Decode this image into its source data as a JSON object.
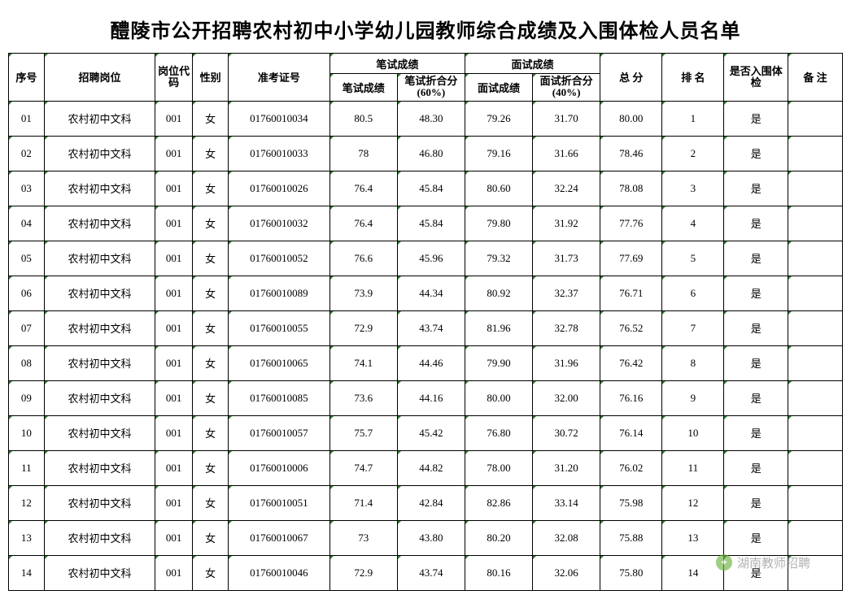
{
  "title": "醴陵市公开招聘农村初中小学幼儿园教师综合成绩及入围体检人员名单",
  "headers": {
    "seq": "序号",
    "position": "招聘岗位",
    "posCode": "岗位代码",
    "gender": "性别",
    "examNo": "准考证号",
    "writtenGroup": "笔试成绩",
    "writtenScore": "笔试成绩",
    "writtenConv": "笔试折合分(60%)",
    "interviewGroup": "面试成绩",
    "interviewScore": "面试成绩",
    "interviewConv": "面试折合分(40%)",
    "total": "总 分",
    "rank": "排 名",
    "pass": "是否入围体检",
    "note": "备 注"
  },
  "rows": [
    {
      "seq": "01",
      "pos": "农村初中文科",
      "code": "001",
      "gender": "女",
      "exam": "01760010034",
      "ws": "80.5",
      "wc": "48.30",
      "is": "79.26",
      "ic": "31.70",
      "total": "80.00",
      "rank": "1",
      "pass": "是",
      "note": ""
    },
    {
      "seq": "02",
      "pos": "农村初中文科",
      "code": "001",
      "gender": "女",
      "exam": "01760010033",
      "ws": "78",
      "wc": "46.80",
      "is": "79.16",
      "ic": "31.66",
      "total": "78.46",
      "rank": "2",
      "pass": "是",
      "note": ""
    },
    {
      "seq": "03",
      "pos": "农村初中文科",
      "code": "001",
      "gender": "女",
      "exam": "01760010026",
      "ws": "76.4",
      "wc": "45.84",
      "is": "80.60",
      "ic": "32.24",
      "total": "78.08",
      "rank": "3",
      "pass": "是",
      "note": ""
    },
    {
      "seq": "04",
      "pos": "农村初中文科",
      "code": "001",
      "gender": "女",
      "exam": "01760010032",
      "ws": "76.4",
      "wc": "45.84",
      "is": "79.80",
      "ic": "31.92",
      "total": "77.76",
      "rank": "4",
      "pass": "是",
      "note": ""
    },
    {
      "seq": "05",
      "pos": "农村初中文科",
      "code": "001",
      "gender": "女",
      "exam": "01760010052",
      "ws": "76.6",
      "wc": "45.96",
      "is": "79.32",
      "ic": "31.73",
      "total": "77.69",
      "rank": "5",
      "pass": "是",
      "note": ""
    },
    {
      "seq": "06",
      "pos": "农村初中文科",
      "code": "001",
      "gender": "女",
      "exam": "01760010089",
      "ws": "73.9",
      "wc": "44.34",
      "is": "80.92",
      "ic": "32.37",
      "total": "76.71",
      "rank": "6",
      "pass": "是",
      "note": ""
    },
    {
      "seq": "07",
      "pos": "农村初中文科",
      "code": "001",
      "gender": "女",
      "exam": "01760010055",
      "ws": "72.9",
      "wc": "43.74",
      "is": "81.96",
      "ic": "32.78",
      "total": "76.52",
      "rank": "7",
      "pass": "是",
      "note": ""
    },
    {
      "seq": "08",
      "pos": "农村初中文科",
      "code": "001",
      "gender": "女",
      "exam": "01760010065",
      "ws": "74.1",
      "wc": "44.46",
      "is": "79.90",
      "ic": "31.96",
      "total": "76.42",
      "rank": "8",
      "pass": "是",
      "note": ""
    },
    {
      "seq": "09",
      "pos": "农村初中文科",
      "code": "001",
      "gender": "女",
      "exam": "01760010085",
      "ws": "73.6",
      "wc": "44.16",
      "is": "80.00",
      "ic": "32.00",
      "total": "76.16",
      "rank": "9",
      "pass": "是",
      "note": ""
    },
    {
      "seq": "10",
      "pos": "农村初中文科",
      "code": "001",
      "gender": "女",
      "exam": "01760010057",
      "ws": "75.7",
      "wc": "45.42",
      "is": "76.80",
      "ic": "30.72",
      "total": "76.14",
      "rank": "10",
      "pass": "是",
      "note": ""
    },
    {
      "seq": "11",
      "pos": "农村初中文科",
      "code": "001",
      "gender": "女",
      "exam": "01760010006",
      "ws": "74.7",
      "wc": "44.82",
      "is": "78.00",
      "ic": "31.20",
      "total": "76.02",
      "rank": "11",
      "pass": "是",
      "note": ""
    },
    {
      "seq": "12",
      "pos": "农村初中文科",
      "code": "001",
      "gender": "女",
      "exam": "01760010051",
      "ws": "71.4",
      "wc": "42.84",
      "is": "82.86",
      "ic": "33.14",
      "total": "75.98",
      "rank": "12",
      "pass": "是",
      "note": ""
    },
    {
      "seq": "13",
      "pos": "农村初中文科",
      "code": "001",
      "gender": "女",
      "exam": "01760010067",
      "ws": "73",
      "wc": "43.80",
      "is": "80.20",
      "ic": "32.08",
      "total": "75.88",
      "rank": "13",
      "pass": "是",
      "note": ""
    },
    {
      "seq": "14",
      "pos": "农村初中文科",
      "code": "001",
      "gender": "女",
      "exam": "01760010046",
      "ws": "72.9",
      "wc": "43.74",
      "is": "80.16",
      "ic": "32.06",
      "total": "75.80",
      "rank": "14",
      "pass": "是",
      "note": ""
    }
  ],
  "watermark": {
    "text": "湖南教师招聘"
  }
}
